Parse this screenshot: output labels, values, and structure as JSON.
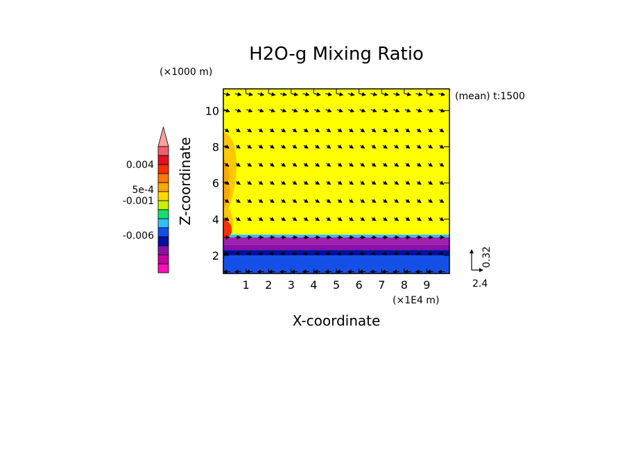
{
  "chart_data": {
    "type": "heatmap",
    "title": "H2O-g Mixing Ratio",
    "xlabel": "X-coordinate",
    "ylabel": "Z-coordinate",
    "x_unit": "(×1E4 m)",
    "y_unit": "(×1000 m)",
    "annotation": "(mean) t:1500",
    "xlim": [
      0,
      10
    ],
    "ylim": [
      1,
      11.2
    ],
    "x_ticks": [
      1,
      2,
      3,
      4,
      5,
      6,
      7,
      8,
      9
    ],
    "y_ticks": [
      2,
      4,
      6,
      8,
      10
    ],
    "colorbar": {
      "colors": [
        "#ff10b8",
        "#c800a0",
        "#8a10a8",
        "#0010a0",
        "#1450e8",
        "#30c0ff",
        "#10e070",
        "#c8f000",
        "#ffd800",
        "#ffa800",
        "#ff7a00",
        "#ff3000",
        "#e81020",
        "#f06070",
        "#ffa0a0"
      ],
      "tick_labels": [
        "-0.006",
        "-0.001",
        "5e-4",
        "0.004"
      ]
    },
    "field_bands": [
      {
        "z_range": [
          1.0,
          2.0
        ],
        "color": "#1450e8"
      },
      {
        "z_range": [
          2.0,
          2.3
        ],
        "color": "#0010a0"
      },
      {
        "z_range": [
          2.3,
          2.6
        ],
        "color": "#8a10a8"
      },
      {
        "z_range": [
          2.6,
          3.0
        ],
        "color": "#a020b0"
      },
      {
        "z_range": [
          3.0,
          3.15
        ],
        "color": "#30c0ff"
      },
      {
        "z_range": [
          3.15,
          11.2
        ],
        "color": "#ffff00"
      }
    ],
    "vector_reference": {
      "x_label": "2.4",
      "z_label": "0.32"
    }
  }
}
